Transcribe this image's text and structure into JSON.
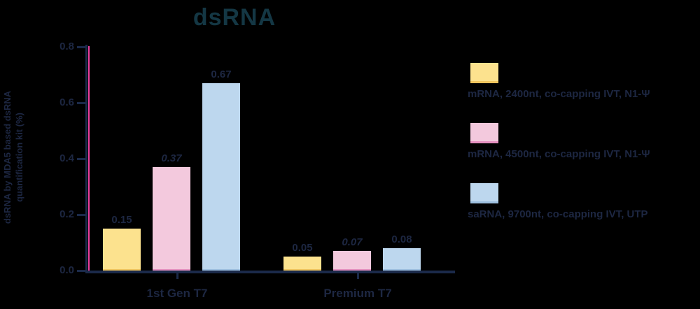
{
  "chart_data": {
    "type": "bar",
    "title": "dsRNA",
    "ylabel_line1": "dsRNA by MDA5 based dsRNA",
    "ylabel_line2": "quantification kit (%)",
    "ylabel": "dsRNA by MDA5 based dsRNA quantification kit (%)",
    "xlabel": "",
    "ylim": [
      0,
      0.8
    ],
    "ytick_labels": [
      "0.0",
      "0.2",
      "0.4",
      "0.6",
      "0.8"
    ],
    "ytick_values": [
      0.0,
      0.2,
      0.4,
      0.6,
      0.8
    ],
    "categories": [
      "1st Gen T7",
      "Premium T7"
    ],
    "series": [
      {
        "name": "mRNA, 2400nt, co-capping IVT, N1-Ψ",
        "color": "#fce28e",
        "edge_color": "#f0c55e",
        "values": [
          0.15,
          0.05
        ],
        "value_labels": [
          "0.15",
          "0.05"
        ]
      },
      {
        "name": "mRNA, 4500nt, co-capping IVT, N1-Ψ",
        "color": "#f3c9dd",
        "edge_color": "#e590bf",
        "values": [
          0.37,
          0.07
        ],
        "value_labels": [
          "0.37",
          "0.07"
        ]
      },
      {
        "name": "saRNA, 9700nt, co-capping IVT, UTP",
        "color": "#bdd7ee",
        "edge_color": "#9dbfdf",
        "values": [
          0.67,
          0.08
        ],
        "value_labels": [
          "0.67",
          "0.08"
        ]
      }
    ],
    "legend_position": "right",
    "grid": false
  },
  "colors": {
    "background": "#000000",
    "text": "#1d2742",
    "title_text": "#143744",
    "axis": "#1b2a4a",
    "axis_accent_magenta": "#ee3f9e"
  }
}
